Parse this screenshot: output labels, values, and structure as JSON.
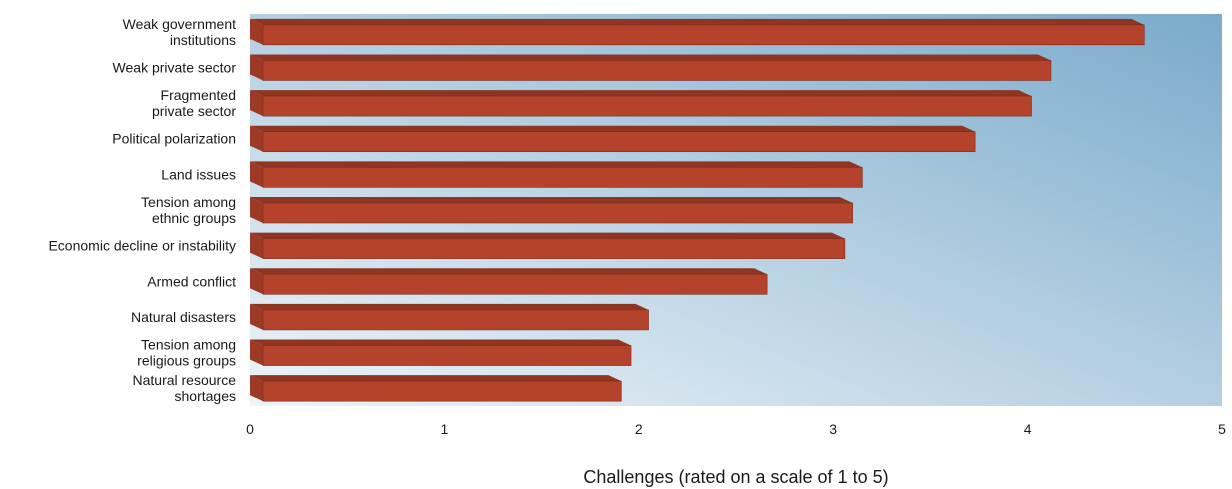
{
  "chart_data": {
    "type": "bar",
    "orientation": "horizontal",
    "categories": [
      [
        "Weak government",
        "institutions"
      ],
      [
        "Weak private sector"
      ],
      [
        "Fragmented",
        "private sector"
      ],
      [
        "Political polarization"
      ],
      [
        "Land issues"
      ],
      [
        "Tension among",
        "ethnic groups"
      ],
      [
        "Economic decline or instability"
      ],
      [
        "Armed conflict"
      ],
      [
        "Natural disasters"
      ],
      [
        "Tension among",
        "religious groups"
      ],
      [
        "Natural resource",
        "shortages"
      ]
    ],
    "values": [
      4.6,
      4.12,
      4.02,
      3.73,
      3.15,
      3.1,
      3.06,
      2.66,
      2.05,
      1.96,
      1.91
    ],
    "xlim": [
      0,
      5
    ],
    "xticks": [
      "0",
      "1",
      "2",
      "3",
      "4",
      "5"
    ],
    "xlabel": "Challenges (rated on a scale of 1 to 5)",
    "ylabel": "",
    "title": "",
    "grid": false,
    "legend": "none",
    "colors": {
      "bar_front": "#b5432b",
      "bar_top": "#8f3522",
      "bar_end": "#9c3a25",
      "bg_light": "#eef4f9",
      "bg_dark": "#7aaacb"
    }
  }
}
